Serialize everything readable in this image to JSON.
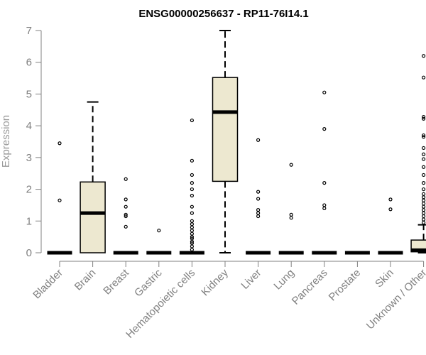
{
  "chart_data": {
    "type": "box",
    "title": "ENSG00000256637 - RP11-76I14.1",
    "ylabel": "Expression",
    "xlabel": "",
    "ylim": [
      0,
      7
    ],
    "yticks": [
      0,
      1,
      2,
      3,
      4,
      5,
      6,
      7
    ],
    "grid": false,
    "colors": {
      "box_fill": "#ede8d0",
      "box_stroke": "#000000",
      "axis": "#808080"
    },
    "categories": [
      "Bladder",
      "Brain",
      "Breast",
      "Gastric",
      "Hematopoietic cells",
      "Kidney",
      "Liver",
      "Lung",
      "Pancreas",
      "Prostate",
      "Skin",
      "Unknown / Other"
    ],
    "boxes": [
      {
        "category": "Bladder",
        "min": 0,
        "q1": 0,
        "median": 0,
        "q3": 0,
        "max": 0,
        "outliers": [
          1.65,
          3.45
        ]
      },
      {
        "category": "Brain",
        "min": 0,
        "q1": 0,
        "median": 1.25,
        "q3": 2.23,
        "max": 4.75,
        "outliers": []
      },
      {
        "category": "Breast",
        "min": 0,
        "q1": 0,
        "median": 0,
        "q3": 0,
        "max": 0,
        "outliers": [
          0.82,
          1.15,
          1.2,
          1.45,
          1.68,
          2.32
        ]
      },
      {
        "category": "Gastric",
        "min": 0,
        "q1": 0,
        "median": 0,
        "q3": 0,
        "max": 0,
        "outliers": [
          0.7
        ]
      },
      {
        "category": "Hematopoietic cells",
        "min": 0,
        "q1": 0,
        "median": 0,
        "q3": 0,
        "max": 0,
        "outliers": [
          0.1,
          0.2,
          0.3,
          0.35,
          0.45,
          0.5,
          0.6,
          0.7,
          0.8,
          0.9,
          1.0,
          1.25,
          1.45,
          1.8,
          2.0,
          2.2,
          2.45,
          2.9,
          4.17
        ]
      },
      {
        "category": "Kidney",
        "min": 0,
        "q1": 2.25,
        "median": 4.43,
        "q3": 5.52,
        "max": 7.0,
        "outliers": []
      },
      {
        "category": "Liver",
        "min": 0,
        "q1": 0,
        "median": 0,
        "q3": 0,
        "max": 0,
        "outliers": [
          1.15,
          1.25,
          1.35,
          1.7,
          1.92,
          3.55
        ]
      },
      {
        "category": "Lung",
        "min": 0,
        "q1": 0,
        "median": 0,
        "q3": 0,
        "max": 0,
        "outliers": [
          1.1,
          1.2,
          2.77
        ]
      },
      {
        "category": "Pancreas",
        "min": 0,
        "q1": 0,
        "median": 0,
        "q3": 0,
        "max": 0,
        "outliers": [
          1.4,
          1.5,
          2.2,
          3.9,
          5.05
        ]
      },
      {
        "category": "Prostate",
        "min": 0,
        "q1": 0,
        "median": 0,
        "q3": 0,
        "max": 0,
        "outliers": []
      },
      {
        "category": "Skin",
        "min": 0,
        "q1": 0,
        "median": 0,
        "q3": 0,
        "max": 0,
        "outliers": [
          1.37,
          1.68
        ]
      },
      {
        "category": "Unknown / Other",
        "min": 0,
        "q1": 0.03,
        "median": 0.08,
        "q3": 0.4,
        "max": 0.88,
        "outliers": [
          0.95,
          1.05,
          1.15,
          1.25,
          1.35,
          1.45,
          1.55,
          1.65,
          1.75,
          1.85,
          2.0,
          2.2,
          2.45,
          2.7,
          2.95,
          3.1,
          3.3,
          3.65,
          3.7,
          4.22,
          4.28,
          5.52,
          6.2
        ]
      }
    ]
  }
}
